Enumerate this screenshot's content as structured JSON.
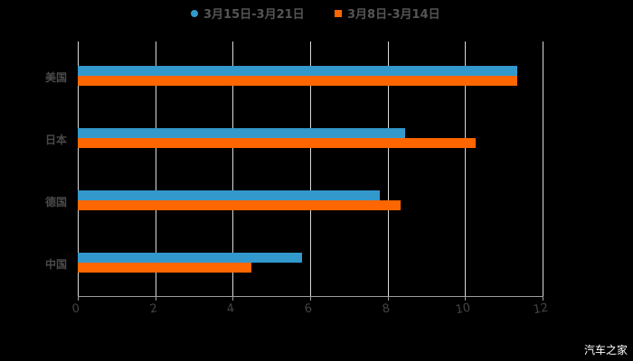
{
  "colors": {
    "series1": "#3399cc",
    "series2": "#ff6600",
    "background": "#000000"
  },
  "legend": [
    {
      "label": "3月15日-3月21日",
      "marker": "circle",
      "color": "#3399cc"
    },
    {
      "label": "3月8日-3月14日",
      "marker": "square",
      "color": "#ff6600"
    }
  ],
  "axis": {
    "ticks": [
      "0",
      "2",
      "4",
      "6",
      "8",
      "10",
      "12"
    ]
  },
  "categories": [
    "美国",
    "日本",
    "德国",
    "中国"
  ],
  "watermark": "汽车之家",
  "chart_data": {
    "type": "bar",
    "orientation": "horizontal",
    "title": "",
    "categories": [
      "美国",
      "日本",
      "德国",
      "中国"
    ],
    "series": [
      {
        "name": "3月15日-3月21日",
        "color": "#3399cc",
        "values": [
          11.35,
          8.45,
          7.8,
          5.8
        ]
      },
      {
        "name": "3月8日-3月14日",
        "color": "#ff6600",
        "values": [
          11.35,
          10.27,
          8.34,
          4.48
        ]
      }
    ],
    "xlabel": "",
    "ylabel": "",
    "xlim": [
      0,
      12
    ],
    "xticks": [
      0,
      2,
      4,
      6,
      8,
      10,
      12
    ],
    "grid": true,
    "legend_position": "top"
  }
}
